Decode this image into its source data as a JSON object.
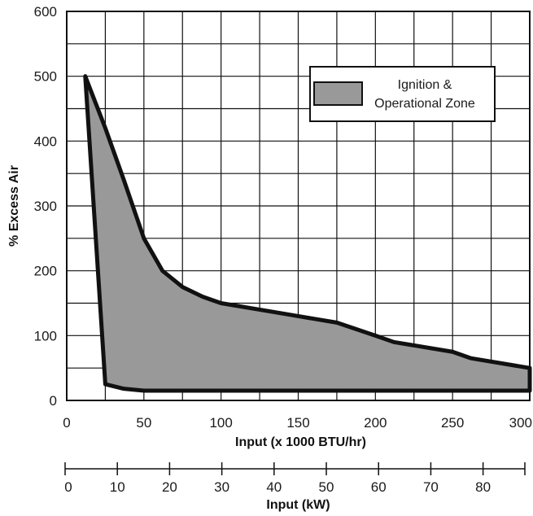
{
  "chart_data": {
    "type": "area",
    "title": "",
    "xlabel": "Input (x 1000 BTU/hr)",
    "ylabel": "% Excess Air",
    "xlim": [
      0,
      300
    ],
    "ylim": [
      0,
      600
    ],
    "x_ticks": [
      0,
      50,
      100,
      150,
      200,
      250,
      300
    ],
    "y_ticks": [
      0,
      100,
      200,
      300,
      400,
      500,
      600
    ],
    "grid": true,
    "legend": {
      "position": "top-right",
      "entries": [
        "Ignition & Operational Zone"
      ]
    },
    "fill_color": "#999999",
    "series": [
      {
        "name": "Ignition & Operational Zone",
        "upper_boundary": [
          {
            "x": 12,
            "y": 500
          },
          {
            "x": 25,
            "y": 420
          },
          {
            "x": 37,
            "y": 340
          },
          {
            "x": 50,
            "y": 250
          },
          {
            "x": 62,
            "y": 200
          },
          {
            "x": 75,
            "y": 175
          },
          {
            "x": 88,
            "y": 160
          },
          {
            "x": 100,
            "y": 150
          },
          {
            "x": 125,
            "y": 140
          },
          {
            "x": 150,
            "y": 130
          },
          {
            "x": 175,
            "y": 120
          },
          {
            "x": 200,
            "y": 100
          },
          {
            "x": 212,
            "y": 90
          },
          {
            "x": 250,
            "y": 75
          },
          {
            "x": 262,
            "y": 65
          },
          {
            "x": 300,
            "y": 50
          }
        ],
        "lower_boundary": [
          {
            "x": 12,
            "y": 500
          },
          {
            "x": 25,
            "y": 25
          },
          {
            "x": 37,
            "y": 18
          },
          {
            "x": 50,
            "y": 15
          },
          {
            "x": 300,
            "y": 15
          }
        ]
      }
    ],
    "secondary_x_axis": {
      "label": "Input (kW)",
      "xlim": [
        0,
        88
      ],
      "ticks": [
        0,
        10,
        20,
        30,
        40,
        50,
        60,
        70,
        80
      ]
    }
  }
}
